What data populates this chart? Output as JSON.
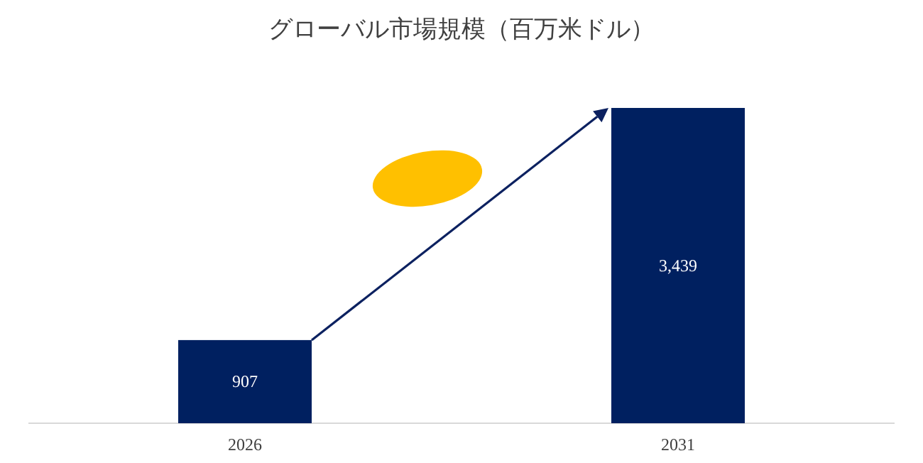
{
  "chart_data": {
    "type": "bar",
    "title": "グローバル市場規模（百万米ドル）",
    "categories": [
      "2026",
      "2031"
    ],
    "values": [
      907,
      3439
    ],
    "color": "#002060",
    "value_labels": [
      "907",
      "3,439"
    ]
  }
}
